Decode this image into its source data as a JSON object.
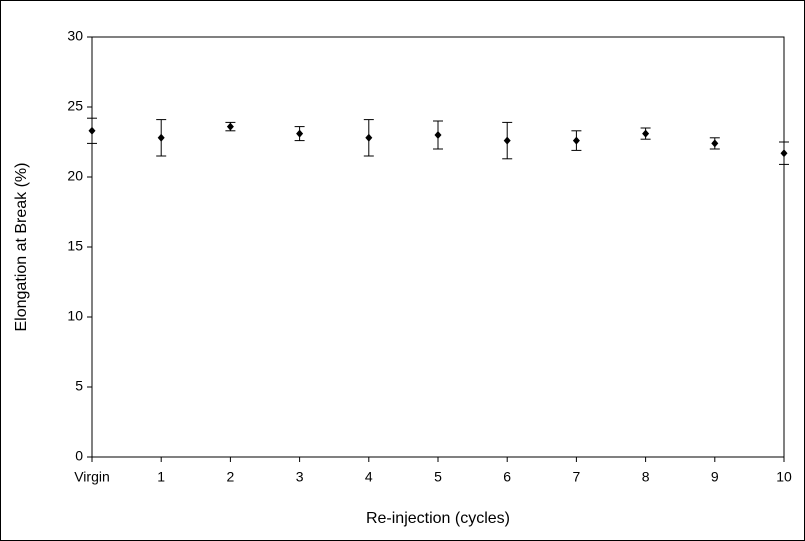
{
  "chart_data": {
    "type": "errorbar",
    "x_label": "Re-injection (cycles)",
    "y_label": "Elongation at Break (%)",
    "categories": [
      "Virgin",
      "1",
      "2",
      "3",
      "4",
      "5",
      "6",
      "7",
      "8",
      "9",
      "10"
    ],
    "values": [
      23.3,
      22.8,
      23.6,
      23.1,
      22.8,
      23.0,
      22.6,
      22.6,
      23.1,
      22.4,
      21.7
    ],
    "errors": [
      0.9,
      1.3,
      0.3,
      0.5,
      1.3,
      1.0,
      1.3,
      0.7,
      0.4,
      0.4,
      0.8
    ],
    "color": "#000000",
    "ylim": [
      0,
      30
    ],
    "yticks": [
      0,
      5,
      10,
      15,
      20,
      25,
      30
    ]
  }
}
